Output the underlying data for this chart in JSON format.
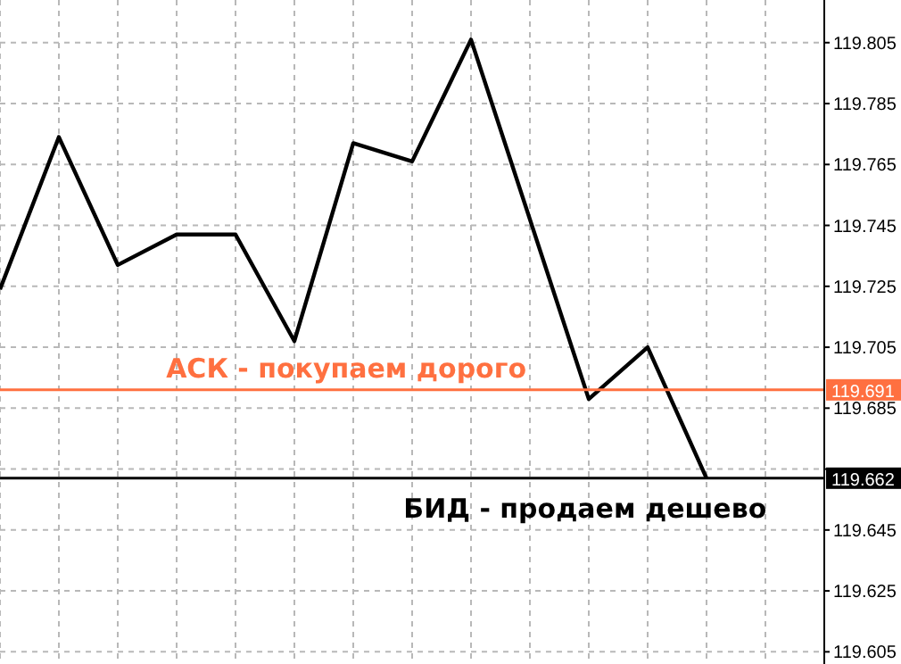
{
  "chart_data": {
    "type": "line",
    "categories": [
      null,
      null,
      null,
      null,
      null,
      null,
      null,
      null,
      null,
      null,
      null,
      null,
      null,
      null,
      null
    ],
    "series": [
      {
        "color": "#000000",
        "values": [
          119.724,
          119.774,
          119.732,
          119.742,
          119.742,
          119.707,
          119.772,
          119.766,
          119.806,
          null,
          119.688,
          119.705,
          119.662,
          null,
          null
        ]
      }
    ],
    "ylim": [
      119.601,
      119.819
    ],
    "yticks": [
      119.605,
      119.625,
      119.645,
      {
        "value": 119.665,
        "label": null
      },
      119.685,
      119.705,
      119.725,
      119.745,
      119.765,
      119.785,
      119.805
    ],
    "tick_labels": "y",
    "grid": true,
    "marker": "none",
    "line_style": "solid",
    "ref_lines": [
      {
        "axis": "y",
        "value": 119.691,
        "label": "АСК - покупаем дорого",
        "color": "#ff7040"
      },
      {
        "axis": "y",
        "value": 119.662,
        "label": "БИД - продаем дешево",
        "color": "#000000"
      }
    ],
    "annotations": [
      "119.691",
      "119.662"
    ]
  }
}
